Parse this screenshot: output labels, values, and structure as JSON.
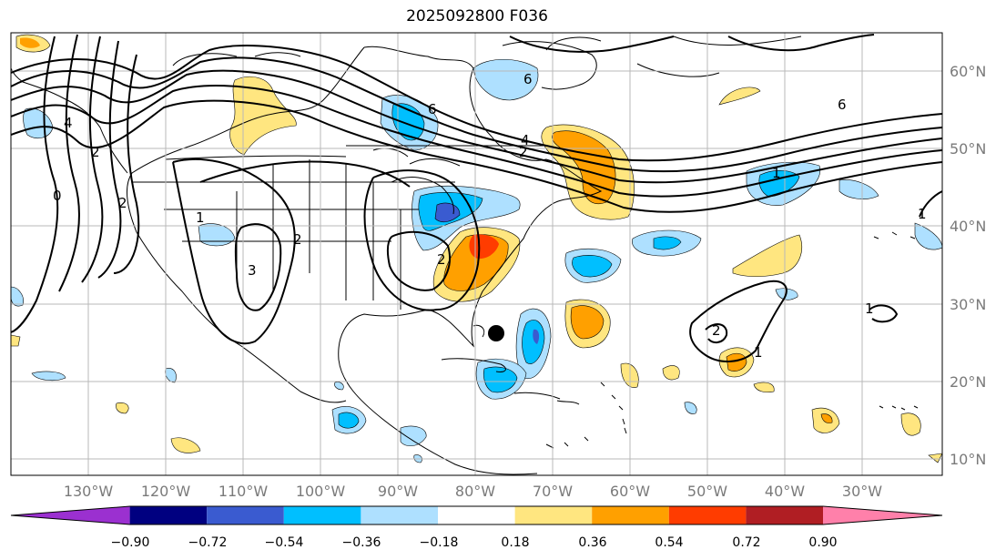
{
  "title": "2025092800 F036",
  "map": {
    "lon_labels": [
      "130°W",
      "120°W",
      "110°W",
      "100°W",
      "90°W",
      "80°W",
      "70°W",
      "60°W",
      "50°W",
      "40°W",
      "30°W"
    ],
    "lat_labels": [
      "60°N",
      "50°N",
      "40°N",
      "30°N",
      "20°N",
      "10°N"
    ],
    "contour_labels": [
      "6",
      "4",
      "2",
      "0",
      "2",
      "2",
      "2",
      "6",
      "4",
      "6",
      "1",
      "1",
      "3",
      "2",
      "2",
      "1",
      "1",
      "1"
    ],
    "marker": "storm-center-dot"
  },
  "colorbar": {
    "ticks": [
      "−0.90",
      "−0.72",
      "−0.54",
      "−0.36",
      "−0.18",
      "0.18",
      "0.36",
      "0.54",
      "0.72",
      "0.90"
    ],
    "colors": [
      "#9b30d0",
      "#000080",
      "#3a5bd0",
      "#00bfff",
      "#aee0ff",
      "#ffffff",
      "#ffe680",
      "#ffa000",
      "#ff3c00",
      "#b01e23",
      "#ff80aa"
    ]
  }
}
